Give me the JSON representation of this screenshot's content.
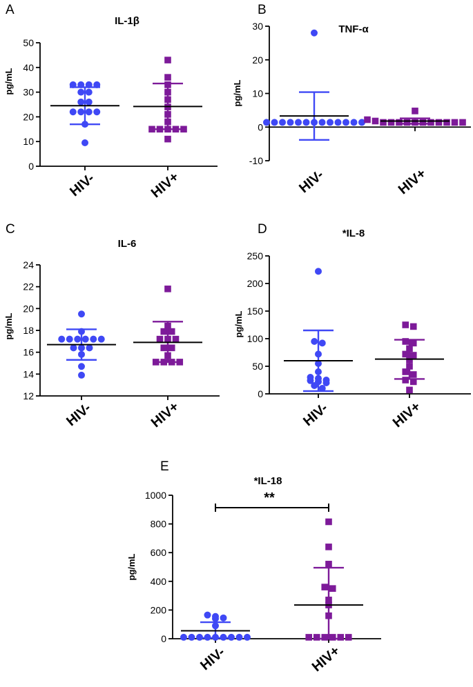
{
  "colors": {
    "hiv_neg": "#3f48f5",
    "hiv_pos": "#7d1a99",
    "axis": "#000000"
  },
  "chart_data": [
    {
      "panel": "A",
      "title": "IL-1β",
      "type": "scatter",
      "ylabel": "pg/mL",
      "ylim": [
        0,
        50
      ],
      "yticks": [
        0,
        10,
        20,
        30,
        40,
        50
      ],
      "categories": [
        "HIV-",
        "HIV+"
      ],
      "series": [
        {
          "name": "HIV-",
          "marker": "circle",
          "mean": 24.5,
          "sd_low": 17,
          "sd_high": 32,
          "values": [
            33,
            33,
            33,
            33,
            30,
            30,
            26,
            26,
            22,
            22,
            22,
            22,
            17,
            9.5
          ]
        },
        {
          "name": "HIV+",
          "marker": "square",
          "mean": 24.2,
          "sd_low": 15,
          "sd_high": 33.5,
          "values": [
            43,
            36,
            33,
            30,
            27,
            24,
            21,
            18,
            15,
            15,
            15,
            15,
            15,
            11
          ]
        }
      ]
    },
    {
      "panel": "B",
      "title": "TNF-α",
      "type": "scatter",
      "ylabel": "pg/mL",
      "ylim": [
        -10,
        30
      ],
      "yticks": [
        -10,
        0,
        10,
        20,
        30
      ],
      "categories": [
        "HIV-",
        "HIV+"
      ],
      "series": [
        {
          "name": "HIV-",
          "marker": "circle",
          "mean": 3.3,
          "sd_low": -3.8,
          "sd_high": 10.4,
          "values": [
            28,
            1.4,
            1.4,
            1.4,
            1.4,
            1.4,
            1.4,
            1.4,
            1.4,
            1.4,
            1.4,
            1.4,
            1.4,
            1.4
          ]
        },
        {
          "name": "HIV+",
          "marker": "square",
          "mean": 1.8,
          "sd_low": 1.0,
          "sd_high": 2.6,
          "values": [
            4.8,
            2.2,
            1.8,
            1.4,
            1.4,
            1.4,
            1.4,
            1.4,
            1.4,
            1.4,
            1.4,
            1.4,
            1.4,
            1.4
          ]
        }
      ]
    },
    {
      "panel": "C",
      "title": "IL-6",
      "type": "scatter",
      "ylabel": "pg/mL",
      "ylim": [
        12,
        24
      ],
      "yticks": [
        12,
        14,
        16,
        18,
        20,
        22,
        24
      ],
      "categories": [
        "HIV-",
        "HIV+"
      ],
      "series": [
        {
          "name": "HIV-",
          "marker": "circle",
          "mean": 16.7,
          "sd_low": 15.3,
          "sd_high": 18.1,
          "values": [
            19.5,
            17.9,
            17.2,
            17.2,
            17.2,
            17.2,
            17.2,
            17.2,
            16.4,
            16.4,
            16.4,
            15.8,
            14.7,
            13.9
          ]
        },
        {
          "name": "HIV+",
          "marker": "square",
          "mean": 16.9,
          "sd_low": 15.1,
          "sd_high": 18.8,
          "values": [
            21.8,
            18.4,
            17.9,
            17.9,
            17.2,
            17.2,
            17.2,
            16.4,
            16.4,
            15.7,
            15.1,
            15.1,
            15.1,
            15.1
          ]
        }
      ]
    },
    {
      "panel": "D",
      "title": "*IL-8",
      "type": "scatter",
      "ylabel": "pg/mL",
      "ylim": [
        0,
        250
      ],
      "yticks": [
        0,
        50,
        100,
        150,
        200,
        250
      ],
      "categories": [
        "HIV-",
        "HIV+"
      ],
      "series": [
        {
          "name": "HIV-",
          "marker": "circle",
          "mean": 60,
          "sd_low": 5,
          "sd_high": 115,
          "values": [
            222,
            95,
            92,
            72,
            55,
            40,
            30,
            28,
            25,
            24,
            22,
            20,
            15,
            10
          ]
        },
        {
          "name": "HIV+",
          "marker": "square",
          "mean": 63,
          "sd_low": 27,
          "sd_high": 98,
          "values": [
            125,
            122,
            95,
            92,
            82,
            72,
            70,
            62,
            50,
            40,
            35,
            25,
            22,
            7
          ]
        }
      ]
    },
    {
      "panel": "E",
      "title": "*IL-18",
      "type": "scatter",
      "ylabel": "pg/mL",
      "ylim": [
        0,
        1000
      ],
      "yticks": [
        0,
        200,
        400,
        600,
        800,
        1000
      ],
      "categories": [
        "HIV-",
        "HIV+"
      ],
      "significance": "**",
      "series": [
        {
          "name": "HIV-",
          "marker": "circle",
          "mean": 55,
          "sd_low": 5,
          "sd_high": 115,
          "values": [
            165,
            155,
            140,
            145,
            90,
            10,
            10,
            10,
            10,
            10,
            10,
            10,
            10,
            10
          ]
        },
        {
          "name": "HIV+",
          "marker": "square",
          "mean": 235,
          "sd_low": 0,
          "sd_high": 495,
          "values": [
            815,
            640,
            520,
            360,
            350,
            270,
            235,
            160,
            10,
            10,
            10,
            10,
            10,
            10
          ]
        }
      ]
    }
  ]
}
